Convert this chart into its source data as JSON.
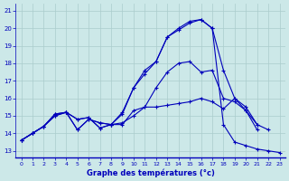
{
  "xlabel": "Graphe des températures (°c)",
  "bg_color": "#cce8e8",
  "line_color": "#0000bb",
  "grid_color": "#aacccc",
  "ylim": [
    12.6,
    21.4
  ],
  "xlim": [
    -0.5,
    23.5
  ],
  "yticks": [
    13,
    14,
    15,
    16,
    17,
    18,
    19,
    20,
    21
  ],
  "xticks": [
    0,
    1,
    2,
    3,
    4,
    5,
    6,
    7,
    8,
    9,
    10,
    11,
    12,
    13,
    14,
    15,
    16,
    17,
    18,
    19,
    20,
    21,
    22,
    23
  ],
  "series": [
    {
      "pts": [
        [
          0,
          13.6
        ],
        [
          1,
          14.0
        ],
        [
          2,
          14.4
        ],
        [
          3,
          15.1
        ],
        [
          4,
          15.2
        ],
        [
          5,
          14.2
        ],
        [
          6,
          14.8
        ],
        [
          7,
          14.6
        ],
        [
          8,
          14.5
        ],
        [
          9,
          15.1
        ],
        [
          10,
          16.6
        ],
        [
          11,
          17.4
        ],
        [
          12,
          18.1
        ],
        [
          13,
          19.5
        ],
        [
          14,
          19.9
        ],
        [
          15,
          20.3
        ],
        [
          16,
          20.5
        ],
        [
          17,
          20.0
        ],
        [
          18,
          17.6
        ],
        [
          19,
          16.0
        ],
        [
          20,
          15.3
        ],
        [
          21,
          14.2
        ]
      ]
    },
    {
      "pts": [
        [
          0,
          13.6
        ],
        [
          1,
          14.0
        ],
        [
          2,
          14.4
        ],
        [
          3,
          15.0
        ],
        [
          4,
          15.2
        ],
        [
          5,
          14.8
        ],
        [
          6,
          14.9
        ],
        [
          7,
          14.3
        ],
        [
          8,
          14.5
        ],
        [
          9,
          14.5
        ],
        [
          10,
          15.3
        ],
        [
          11,
          15.5
        ],
        [
          12,
          15.5
        ],
        [
          13,
          15.6
        ],
        [
          14,
          15.7
        ],
        [
          15,
          15.8
        ],
        [
          16,
          16.0
        ],
        [
          17,
          15.8
        ],
        [
          18,
          15.4
        ],
        [
          19,
          16.0
        ],
        [
          20,
          15.5
        ],
        [
          21,
          14.5
        ],
        [
          22,
          14.2
        ]
      ]
    },
    {
      "pts": [
        [
          0,
          13.6
        ],
        [
          1,
          14.0
        ],
        [
          2,
          14.4
        ],
        [
          3,
          15.1
        ],
        [
          4,
          15.2
        ],
        [
          5,
          14.2
        ],
        [
          6,
          14.8
        ],
        [
          7,
          14.6
        ],
        [
          8,
          14.5
        ],
        [
          9,
          15.2
        ],
        [
          10,
          16.6
        ],
        [
          11,
          17.6
        ],
        [
          12,
          18.1
        ],
        [
          13,
          19.5
        ],
        [
          14,
          20.0
        ],
        [
          15,
          20.4
        ],
        [
          16,
          20.5
        ],
        [
          17,
          20.0
        ],
        [
          18,
          14.5
        ],
        [
          19,
          13.5
        ],
        [
          20,
          13.3
        ],
        [
          21,
          13.1
        ],
        [
          22,
          13.0
        ],
        [
          23,
          12.9
        ]
      ]
    },
    {
      "pts": [
        [
          0,
          13.6
        ],
        [
          1,
          14.0
        ],
        [
          2,
          14.4
        ],
        [
          3,
          15.0
        ],
        [
          4,
          15.2
        ],
        [
          5,
          14.8
        ],
        [
          6,
          14.9
        ],
        [
          7,
          14.3
        ],
        [
          8,
          14.5
        ],
        [
          9,
          14.6
        ],
        [
          10,
          15.0
        ],
        [
          11,
          15.5
        ],
        [
          12,
          16.6
        ],
        [
          13,
          17.5
        ],
        [
          14,
          18.0
        ],
        [
          15,
          18.1
        ],
        [
          16,
          17.5
        ],
        [
          17,
          17.6
        ],
        [
          18,
          16.0
        ],
        [
          19,
          15.8
        ],
        [
          20,
          15.3
        ],
        [
          21,
          14.5
        ]
      ]
    }
  ]
}
